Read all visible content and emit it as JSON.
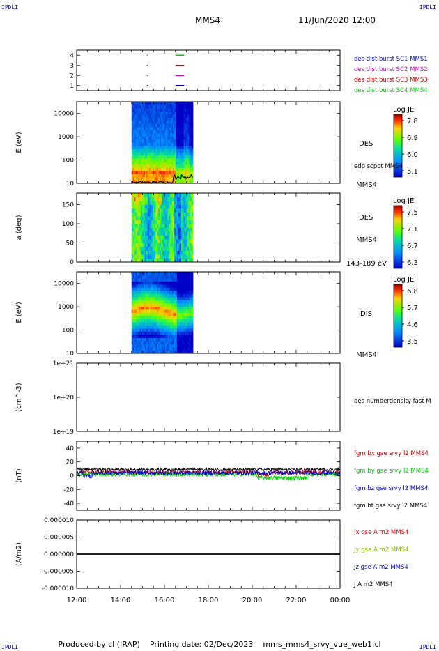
{
  "header": {
    "corner_label": "IPDLI",
    "spacecraft": "MMS4",
    "datetime": "11/Jun/2020 12:00"
  },
  "footer": {
    "produced": "Produced by cl (IRAP)",
    "printing": "Printing date: 02/Dec/2023",
    "file": "mms_mms4_srvy_vue_web1.cl"
  },
  "time_axis": {
    "ticks": [
      "12:00",
      "14:00",
      "16:00",
      "18:00",
      "20:00",
      "22:00",
      "00:00"
    ],
    "start_hours": 12,
    "end_hours": 24
  },
  "chart_data": [
    {
      "id": "burst-availability",
      "type": "scatter",
      "yticks": [
        "1",
        "2",
        "3",
        "4"
      ],
      "ylim": [
        0.5,
        4.5
      ],
      "legend": [
        {
          "label": "des dist burst SC1 MMS1",
          "color": "#0000cc"
        },
        {
          "label": "des dist burst SC2 MMS2",
          "color": "#cc00cc"
        },
        {
          "label": "des dist burst SC3 MMS3",
          "color": "#cc0000"
        },
        {
          "label": "des dist burst SC4 MMS4",
          "color": "#00cc00"
        }
      ],
      "segments": [
        {
          "level": 1,
          "start": 15.2,
          "end": 15.25,
          "color": "#0000cc"
        },
        {
          "level": 1,
          "start": 16.5,
          "end": 16.9,
          "color": "#0000cc"
        },
        {
          "level": 2,
          "start": 15.2,
          "end": 15.25,
          "color": "#cc00cc"
        },
        {
          "level": 2,
          "start": 16.5,
          "end": 16.9,
          "color": "#cc00cc"
        },
        {
          "level": 3,
          "start": 15.2,
          "end": 15.25,
          "color": "#cc0000"
        },
        {
          "level": 3,
          "start": 16.5,
          "end": 16.9,
          "color": "#cc0000"
        },
        {
          "level": 4,
          "start": 15.2,
          "end": 15.25,
          "color": "#00cc00"
        },
        {
          "level": 4,
          "start": 16.5,
          "end": 16.9,
          "color": "#00cc00"
        }
      ]
    },
    {
      "id": "des-energy",
      "type": "heatmap",
      "ylabel": "E (eV)",
      "yscale": "log",
      "yticks": [
        "10",
        "100",
        "1000",
        "10000"
      ],
      "species_label": "DES",
      "overlay_label": "edp scpot MMS4",
      "sc_label": "MMS4",
      "data_start": 14.5,
      "data_end": 17.3,
      "colorbar": {
        "title": "Log JE",
        "ticks": [
          "7.8",
          "6.9",
          "6.0",
          "5.1"
        ]
      }
    },
    {
      "id": "des-pitch",
      "type": "heatmap",
      "ylabel": "a (deg)",
      "yticks": [
        "0",
        "50",
        "100",
        "150"
      ],
      "species_label": "DES",
      "sc_label": "MMS4",
      "energy_range": "143-189 eV",
      "data_start": 14.5,
      "data_end": 17.3,
      "colorbar": {
        "title": "Log JE",
        "ticks": [
          "7.5",
          "7.1",
          "6.7",
          "6.3"
        ]
      }
    },
    {
      "id": "dis-energy",
      "type": "heatmap",
      "ylabel": "E (eV)",
      "yscale": "log",
      "yticks": [
        "10",
        "100",
        "1000",
        "10000"
      ],
      "species_label": "DIS",
      "sc_label": "MMS4",
      "data_start": 14.5,
      "data_end": 17.3,
      "colorbar": {
        "title": "Log JE",
        "ticks": [
          "6.8",
          "5.7",
          "4.6",
          "3.5"
        ]
      }
    },
    {
      "id": "density",
      "type": "line",
      "ylabel": "(cm^-3)",
      "yscale": "log",
      "yticks": [
        "1e+19",
        "1e+20",
        "1e+21"
      ],
      "legend": [
        {
          "label": "des numberdensity fast M",
          "color": "#000000"
        }
      ]
    },
    {
      "id": "fgm",
      "type": "line",
      "ylabel": "(nT)",
      "yticks": [
        "-40",
        "-20",
        "0",
        "20",
        "40"
      ],
      "ylim": [
        -50,
        50
      ],
      "legend": [
        {
          "label": "fgm bx gse srvy l2 MMS4",
          "color": "#cc0000"
        },
        {
          "label": "fgm by gse srvy l2 MMS4",
          "color": "#00cc00"
        },
        {
          "label": "fgm bz gse srvy l2 MMS4",
          "color": "#0000cc"
        },
        {
          "label": "fgm bt gse srvy l2 MMS4",
          "color": "#000000"
        }
      ],
      "series": [
        {
          "name": "fgm bx gse srvy l2 MMS4",
          "color": "#cc0000",
          "base": 5,
          "noise": 3
        },
        {
          "name": "fgm by gse srvy l2 MMS4",
          "color": "#00cc00",
          "base": 2,
          "noise": 3
        },
        {
          "name": "fgm bz gse srvy l2 MMS4",
          "color": "#0000cc",
          "base": 4,
          "noise": 3
        },
        {
          "name": "fgm bt gse srvy l2 MMS4",
          "color": "#000000",
          "base": 9,
          "noise": 2
        }
      ]
    },
    {
      "id": "current",
      "type": "line",
      "ylabel": "(A/m2)",
      "yticks": [
        "-0.000010",
        "-0.000005",
        "0.000000",
        "0.000005",
        "0.000010"
      ],
      "ylim": [
        -1e-05,
        1e-05
      ],
      "legend": [
        {
          "label": "Jx gse A m2 MMS4",
          "color": "#cc0000"
        },
        {
          "label": "Jy gse A m2 MMS4",
          "color": "#88bb00"
        },
        {
          "label": "Jz gse A m2 MMS4",
          "color": "#0000cc"
        },
        {
          "label": "J A m2 MMS4",
          "color": "#000000"
        }
      ],
      "series": [
        {
          "name": "J A m2 MMS4",
          "color": "#000000",
          "value": 0
        }
      ]
    }
  ]
}
